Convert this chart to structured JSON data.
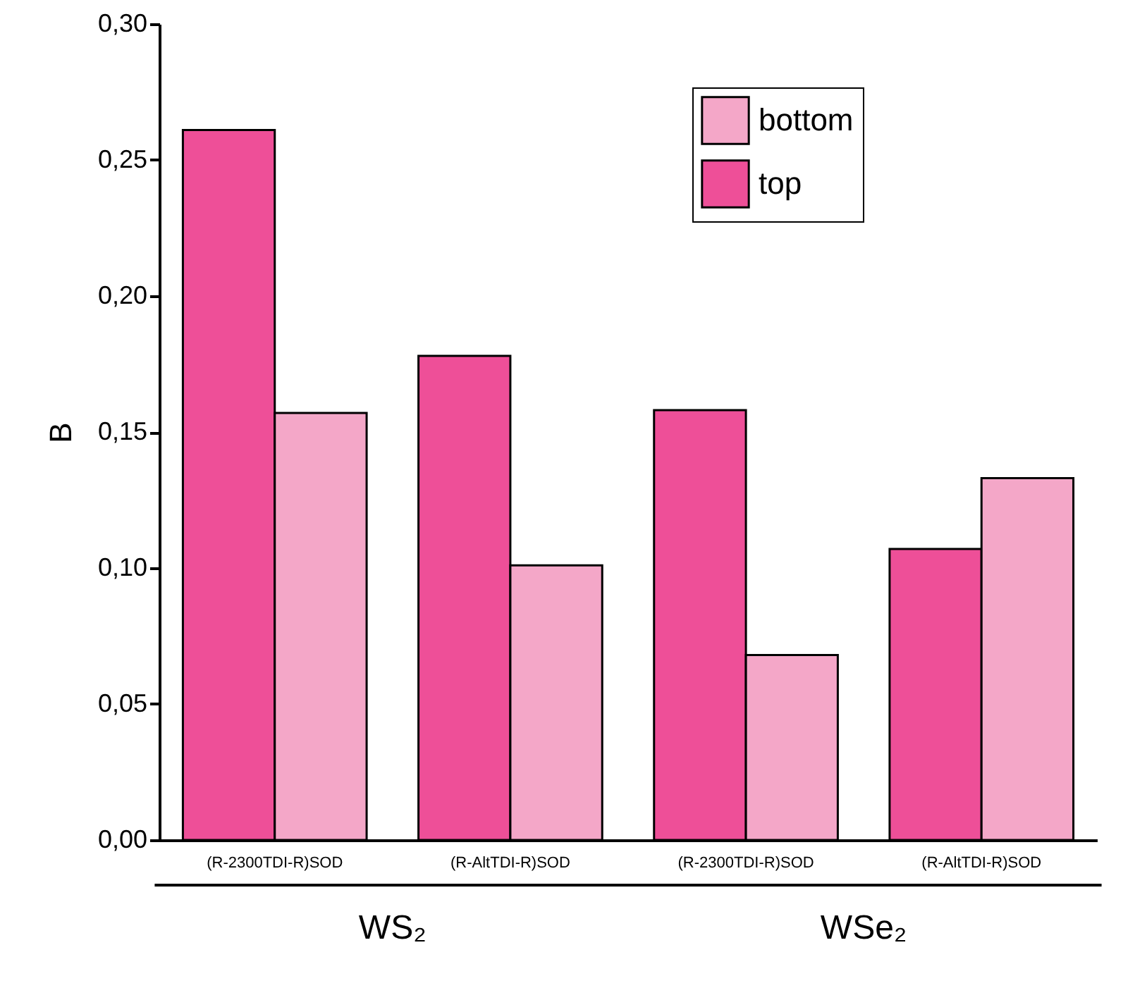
{
  "chart_data": {
    "type": "bar",
    "ylabel": "B",
    "categories": [
      "(R-2300TDI-R)SOD",
      "(R-AltTDI-R)SOD",
      "(R-2300TDI-R)SOD",
      "(R-AltTDI-R)SOD"
    ],
    "series": [
      {
        "name": "top",
        "color": "#ee4f98",
        "values": [
          0.261,
          0.178,
          0.158,
          0.107
        ]
      },
      {
        "name": "bottom",
        "color": "#f4a7c8",
        "values": [
          0.157,
          0.101,
          0.068,
          0.133
        ]
      }
    ],
    "ylim": [
      0,
      0.3
    ],
    "yticks": [
      {
        "value": 0,
        "label": "0,00"
      },
      {
        "value": 0.05,
        "label": "0,05"
      },
      {
        "value": 0.1,
        "label": "0,10"
      },
      {
        "value": 0.15,
        "label": "0,15"
      },
      {
        "value": 0.2,
        "label": "0,20"
      },
      {
        "value": 0.25,
        "label": "0,25"
      },
      {
        "value": 0.3,
        "label": "0,30"
      }
    ],
    "annotations": [
      "WS₂",
      "WSe₂"
    ],
    "legend": "top right",
    "grid": false
  }
}
